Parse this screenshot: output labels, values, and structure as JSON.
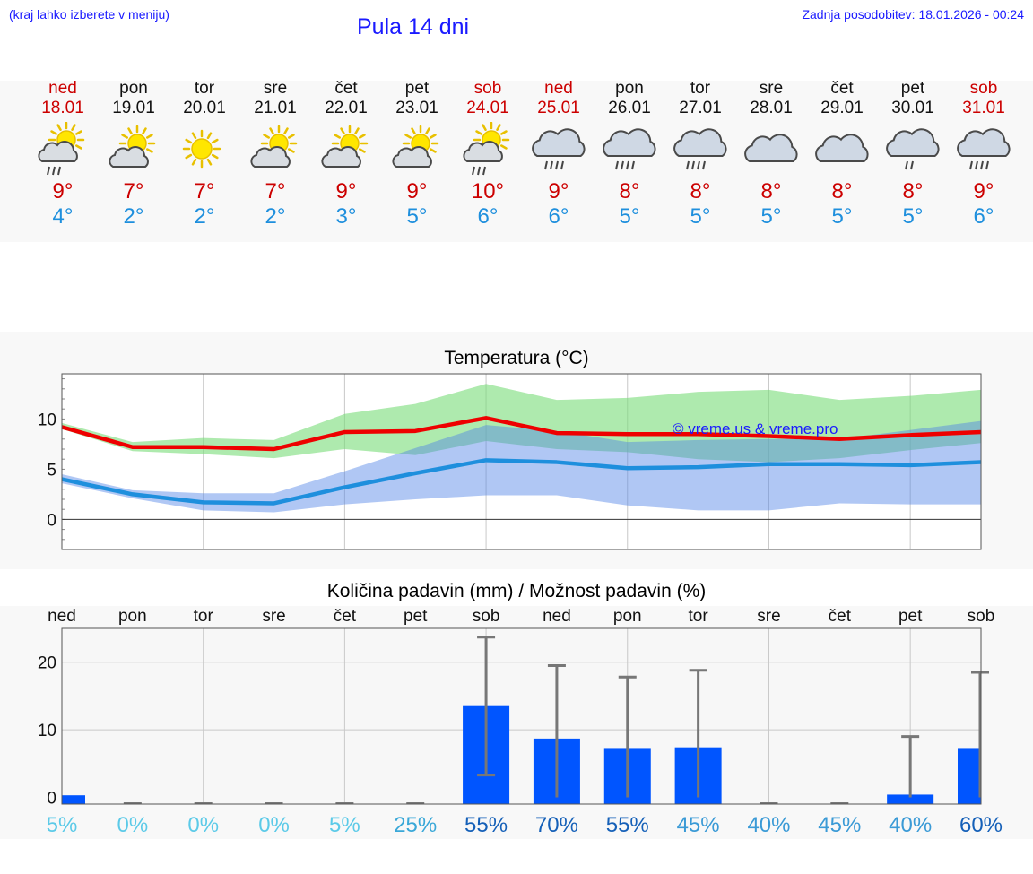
{
  "header": {
    "region_note": "(kraj lahko izberete v meniju)",
    "title": "Pula 14 dni",
    "updated": "Zadnja posodobitev: 18.01.2026 - 00:24"
  },
  "colors": {
    "weekend": "#cc0000",
    "max": "#ee0000",
    "min": "#1e8fdd",
    "bar": "#0055ff",
    "err": "#777777"
  },
  "days": [
    {
      "name": "ned",
      "date": "18.01",
      "icon": "sun-cloud-rain-icon",
      "tmax": "9°",
      "tmin": "4°",
      "weekend": true
    },
    {
      "name": "pon",
      "date": "19.01",
      "icon": "sun-cloud-icon",
      "tmax": "7°",
      "tmin": "2°",
      "weekend": false
    },
    {
      "name": "tor",
      "date": "20.01",
      "icon": "sun-icon",
      "tmax": "7°",
      "tmin": "2°",
      "weekend": false
    },
    {
      "name": "sre",
      "date": "21.01",
      "icon": "sun-cloud-icon",
      "tmax": "7°",
      "tmin": "2°",
      "weekend": false
    },
    {
      "name": "čet",
      "date": "22.01",
      "icon": "sun-cloud-icon",
      "tmax": "9°",
      "tmin": "3°",
      "weekend": false
    },
    {
      "name": "pet",
      "date": "23.01",
      "icon": "sun-cloud-icon",
      "tmax": "9°",
      "tmin": "5°",
      "weekend": false
    },
    {
      "name": "sob",
      "date": "24.01",
      "icon": "sun-cloud-rain-icon",
      "tmax": "10°",
      "tmin": "6°",
      "weekend": true
    },
    {
      "name": "ned",
      "date": "25.01",
      "icon": "cloud-rain-icon",
      "tmax": "9°",
      "tmin": "6°",
      "weekend": true
    },
    {
      "name": "pon",
      "date": "26.01",
      "icon": "cloud-rain-icon",
      "tmax": "8°",
      "tmin": "5°",
      "weekend": false
    },
    {
      "name": "tor",
      "date": "27.01",
      "icon": "cloud-rain-icon",
      "tmax": "8°",
      "tmin": "5°",
      "weekend": false
    },
    {
      "name": "sre",
      "date": "28.01",
      "icon": "cloud-icon",
      "tmax": "8°",
      "tmin": "5°",
      "weekend": false
    },
    {
      "name": "čet",
      "date": "29.01",
      "icon": "cloud-icon",
      "tmax": "8°",
      "tmin": "5°",
      "weekend": false
    },
    {
      "name": "pet",
      "date": "30.01",
      "icon": "cloud-light-rain-icon",
      "tmax": "8°",
      "tmin": "5°",
      "weekend": false
    },
    {
      "name": "sob",
      "date": "31.01",
      "icon": "cloud-rain-icon",
      "tmax": "9°",
      "tmin": "6°",
      "weekend": true
    }
  ],
  "chart_data": [
    {
      "type": "line",
      "title": "Temperatura (°C)",
      "watermark": "© vreme.us & vreme.pro",
      "ylim": [
        -3,
        14.5
      ],
      "yticks": [
        "0",
        "5",
        "10"
      ],
      "ytick_values": [
        0,
        5,
        10
      ],
      "x": [
        0,
        1,
        2,
        3,
        4,
        5,
        6,
        7,
        8,
        9,
        10,
        11,
        12,
        13
      ],
      "series": [
        {
          "name": "max",
          "values": [
            9.2,
            7.2,
            7.2,
            7.0,
            8.7,
            8.8,
            10.1,
            8.6,
            8.5,
            8.5,
            8.3,
            8.0,
            8.4,
            8.7
          ]
        },
        {
          "name": "min",
          "values": [
            4.0,
            2.5,
            1.7,
            1.6,
            3.2,
            4.6,
            5.9,
            5.7,
            5.1,
            5.2,
            5.5,
            5.5,
            5.4,
            5.7
          ]
        }
      ],
      "max_band": {
        "low": [
          9.0,
          6.8,
          6.5,
          6.1,
          7.0,
          6.4,
          7.8,
          7.0,
          6.7,
          6.0,
          5.7,
          6.1,
          6.9,
          7.6
        ],
        "high": [
          9.6,
          7.7,
          8.1,
          7.9,
          10.5,
          11.5,
          13.5,
          11.9,
          12.1,
          12.7,
          12.9,
          11.9,
          12.3,
          12.9
        ]
      },
      "min_band": {
        "low": [
          3.6,
          2.1,
          0.9,
          0.7,
          1.5,
          2.0,
          2.4,
          2.4,
          1.4,
          0.9,
          0.9,
          1.6,
          1.5,
          1.5
        ],
        "high": [
          4.5,
          2.9,
          2.6,
          2.6,
          4.8,
          7.1,
          9.4,
          8.8,
          7.7,
          7.9,
          8.0,
          8.0,
          8.9,
          9.8
        ]
      }
    },
    {
      "type": "bar",
      "title": "Količina padavin (mm) / Možnost padavin (%)",
      "ylim": [
        -1,
        25
      ],
      "yticks": [
        "0",
        "10",
        "20"
      ],
      "ytick_values": [
        0,
        10,
        20
      ],
      "categories": [
        "ned",
        "pon",
        "tor",
        "sre",
        "čet",
        "pet",
        "sob",
        "ned",
        "pon",
        "tor",
        "sre",
        "čet",
        "pet",
        "sob"
      ],
      "values": [
        0.3,
        0,
        0,
        0,
        0,
        0,
        13.5,
        8.7,
        7.3,
        7.4,
        0,
        0,
        0.4,
        7.3
      ],
      "err_low": [
        0,
        0,
        0,
        0,
        0,
        0,
        3.3,
        0,
        0,
        0,
        0,
        0,
        0,
        0
      ],
      "err_high": [
        0.6,
        0,
        0,
        0,
        0,
        0,
        23.7,
        19.5,
        17.8,
        18.8,
        0,
        0,
        9.0,
        18.5
      ],
      "chance": [
        "5%",
        "0%",
        "0%",
        "0%",
        "5%",
        "25%",
        "55%",
        "70%",
        "55%",
        "45%",
        "40%",
        "45%",
        "40%",
        "60%"
      ],
      "chance_values": [
        5,
        0,
        0,
        0,
        5,
        25,
        55,
        70,
        55,
        45,
        40,
        45,
        40,
        60
      ]
    }
  ]
}
